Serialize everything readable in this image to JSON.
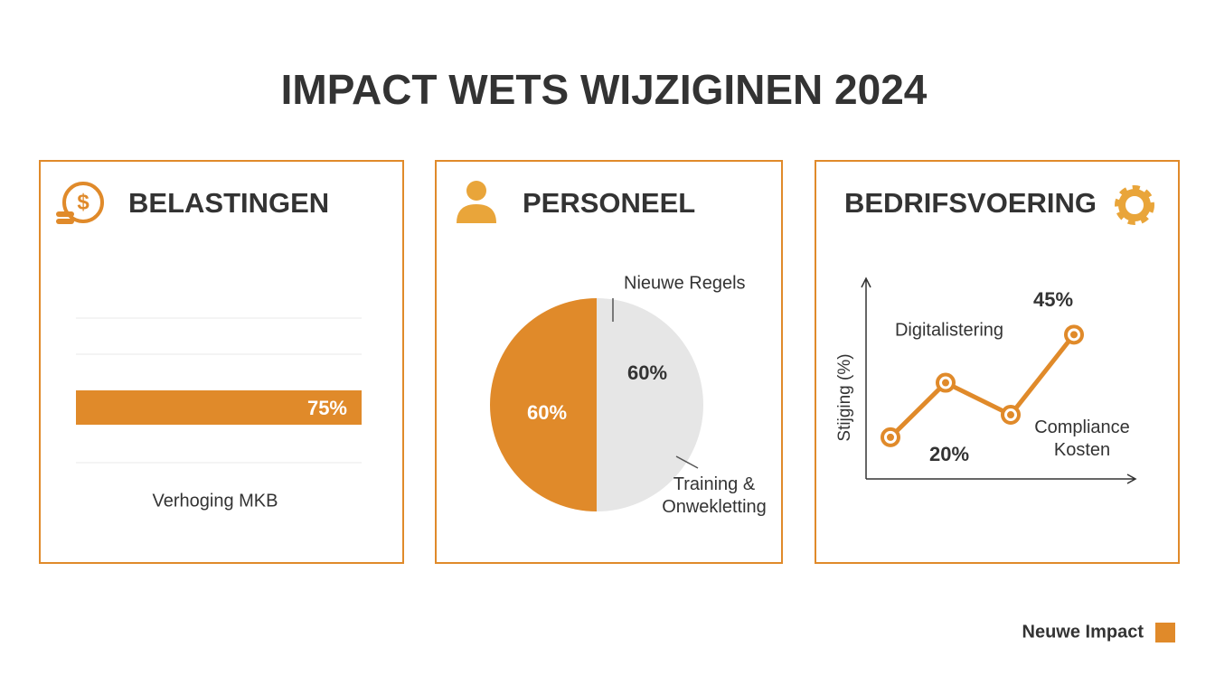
{
  "title": "IMPACT WETS WIJZIGINEN 2024",
  "legend": {
    "label": "Neuwe Impact",
    "color": "#e08a2a"
  },
  "chart_data": [
    {
      "type": "hbar",
      "title": "BELASTINGEN",
      "categories": [
        "Verhoging MKB"
      ],
      "values": [
        75
      ],
      "value_labels": [
        "75%"
      ],
      "color": "#e08a2a",
      "xlim": [
        0,
        75
      ]
    },
    {
      "type": "pie",
      "title": "PERSONEEL",
      "categories": [
        "Nieuwe Regels",
        "Training & Onwekletting"
      ],
      "values": [
        60,
        60
      ],
      "value_labels": [
        "60%",
        "60%"
      ],
      "colors": [
        "#e6e6e6",
        "#e08a2a"
      ]
    },
    {
      "type": "line",
      "title": "BEDRIFSVOERING",
      "y_label": "Stijging (%)",
      "categories": [
        null,
        null,
        null,
        null
      ],
      "values": [
        13,
        30,
        20,
        45
      ],
      "value_labels": [
        null,
        null,
        "20%",
        "45%"
      ],
      "color": "#e08a2a",
      "ylim": [
        0,
        62
      ],
      "annotations": [
        "Digitalistering",
        "Compliance Kosten"
      ]
    }
  ]
}
